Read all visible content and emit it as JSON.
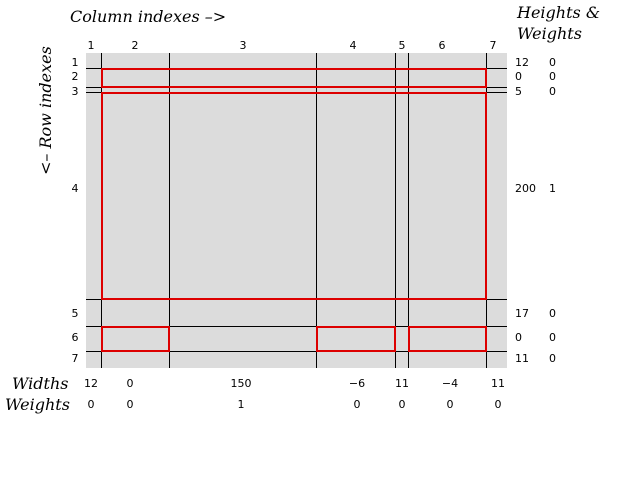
{
  "titles": {
    "column_indexes": "Column indexes –>",
    "row_indexes": "<– Row indexes",
    "heights_weights_line1": "Heights &",
    "heights_weights_line2": "Weights",
    "widths": "Widths",
    "weights": "Weights"
  },
  "columns": [
    {
      "index": "1",
      "width": "12",
      "weight": "0"
    },
    {
      "index": "2",
      "width": "0",
      "weight": "0"
    },
    {
      "index": "3",
      "width": "150",
      "weight": "1"
    },
    {
      "index": "4",
      "width": "−6",
      "weight": "0"
    },
    {
      "index": "5",
      "width": "11",
      "weight": "0"
    },
    {
      "index": "6",
      "width": "−4",
      "weight": "0"
    },
    {
      "index": "7",
      "width": "11",
      "weight": "0"
    }
  ],
  "rows": [
    {
      "index": "1",
      "height": "12",
      "weight": "0"
    },
    {
      "index": "2",
      "height": "0",
      "weight": "0"
    },
    {
      "index": "3",
      "height": "5",
      "weight": "0"
    },
    {
      "index": "4",
      "height": "200",
      "weight": "1"
    },
    {
      "index": "5",
      "height": "17",
      "weight": "0"
    },
    {
      "index": "6",
      "height": "0",
      "weight": "0"
    },
    {
      "index": "7",
      "height": "11",
      "weight": "0"
    }
  ],
  "colors": {
    "grid_background": "#dcdcdc",
    "grid_line": "#000000",
    "cell_outline": "#dd0000"
  }
}
